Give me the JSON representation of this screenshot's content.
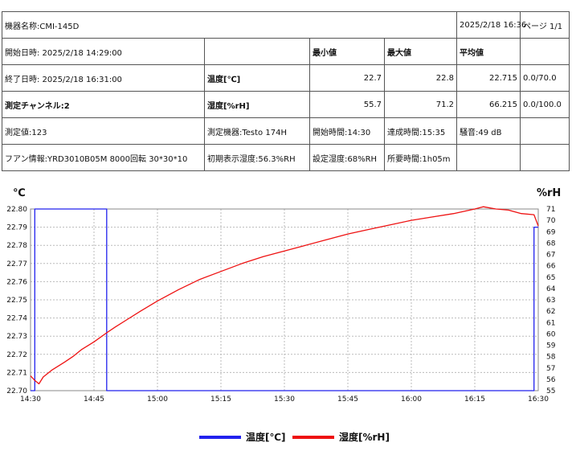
{
  "header": {
    "device_label": "機器名称:CMI-145D",
    "printed_at": "2025/2/18 16:36",
    "page": "ページ 1/1"
  },
  "stats_header": {
    "min": "最小値",
    "max": "最大値",
    "avg": "平均値"
  },
  "rows": {
    "start": "開始日時: 2025/2/18 14:29:00",
    "end": "終了日時: 2025/2/18 16:31:00",
    "channel": "測定チャンネル:2",
    "measure_value": "測定値:123",
    "fan_info": "フアン情報:YRD3010B05M 8000回転 30*30*10"
  },
  "temp_row": {
    "label": "温度[℃]",
    "min": "22.7",
    "max": "22.8",
    "avg": "22.715",
    "range": "0.0/70.0"
  },
  "hum_row": {
    "label": "湿度[%rH]",
    "min": "55.7",
    "max": "71.2",
    "avg": "66.215",
    "range": "0.0/100.0"
  },
  "meta": {
    "instrument": "測定機器:Testo 174H",
    "start_time": "開始時間:14:30",
    "reach_time": "達成時間:15:35",
    "noise": "騒音:49 dB",
    "initial_humidity": "初期表示湿度:56.3%RH",
    "set_humidity": "設定湿度:68%RH",
    "required_time": "所要時間:1h05m"
  },
  "chart_data": {
    "type": "line",
    "left_unit": "℃",
    "right_unit": "%rH",
    "x_ticks": [
      "14:30",
      "14:45",
      "15:00",
      "15:15",
      "15:30",
      "15:45",
      "16:00",
      "16:15",
      "16:30"
    ],
    "x_range_minutes": [
      0,
      120
    ],
    "y_left_ticks": [
      "22.70",
      "22.71",
      "22.72",
      "22.73",
      "22.74",
      "22.75",
      "22.76",
      "22.77",
      "22.78",
      "22.79",
      "22.80"
    ],
    "y_left_range": [
      22.7,
      22.8
    ],
    "y_right_ticks": [
      "55",
      "56",
      "57",
      "58",
      "59",
      "60",
      "61",
      "62",
      "63",
      "64",
      "65",
      "66",
      "67",
      "68",
      "69",
      "70",
      "71"
    ],
    "y_right_range": [
      55,
      71
    ],
    "grid": true,
    "legend_position": "bottom",
    "series": [
      {
        "name": "温度[℃]",
        "axis": "left",
        "color": "#2222ee",
        "points": [
          [
            0,
            22.7
          ],
          [
            1,
            22.7
          ],
          [
            1,
            22.8
          ],
          [
            18,
            22.8
          ],
          [
            18,
            22.7
          ],
          [
            119,
            22.7
          ],
          [
            119,
            22.79
          ],
          [
            120,
            22.79
          ]
        ]
      },
      {
        "name": "湿度[%rH]",
        "axis": "right",
        "color": "#ee1111",
        "points": [
          [
            0,
            56.3
          ],
          [
            1,
            55.9
          ],
          [
            2,
            55.6
          ],
          [
            3,
            56.2
          ],
          [
            5,
            56.8
          ],
          [
            8,
            57.5
          ],
          [
            10,
            58.0
          ],
          [
            12,
            58.6
          ],
          [
            15,
            59.3
          ],
          [
            18,
            60.1
          ],
          [
            20,
            60.6
          ],
          [
            23,
            61.3
          ],
          [
            26,
            62.0
          ],
          [
            30,
            62.9
          ],
          [
            35,
            63.9
          ],
          [
            40,
            64.8
          ],
          [
            45,
            65.5
          ],
          [
            50,
            66.2
          ],
          [
            55,
            66.8
          ],
          [
            60,
            67.3
          ],
          [
            65,
            67.8
          ],
          [
            70,
            68.3
          ],
          [
            75,
            68.8
          ],
          [
            80,
            69.2
          ],
          [
            85,
            69.6
          ],
          [
            90,
            70.0
          ],
          [
            95,
            70.3
          ],
          [
            100,
            70.6
          ],
          [
            105,
            71.0
          ],
          [
            107,
            71.2
          ],
          [
            110,
            71.0
          ],
          [
            113,
            70.9
          ],
          [
            116,
            70.6
          ],
          [
            119,
            70.5
          ],
          [
            120,
            69.5
          ]
        ]
      }
    ]
  }
}
